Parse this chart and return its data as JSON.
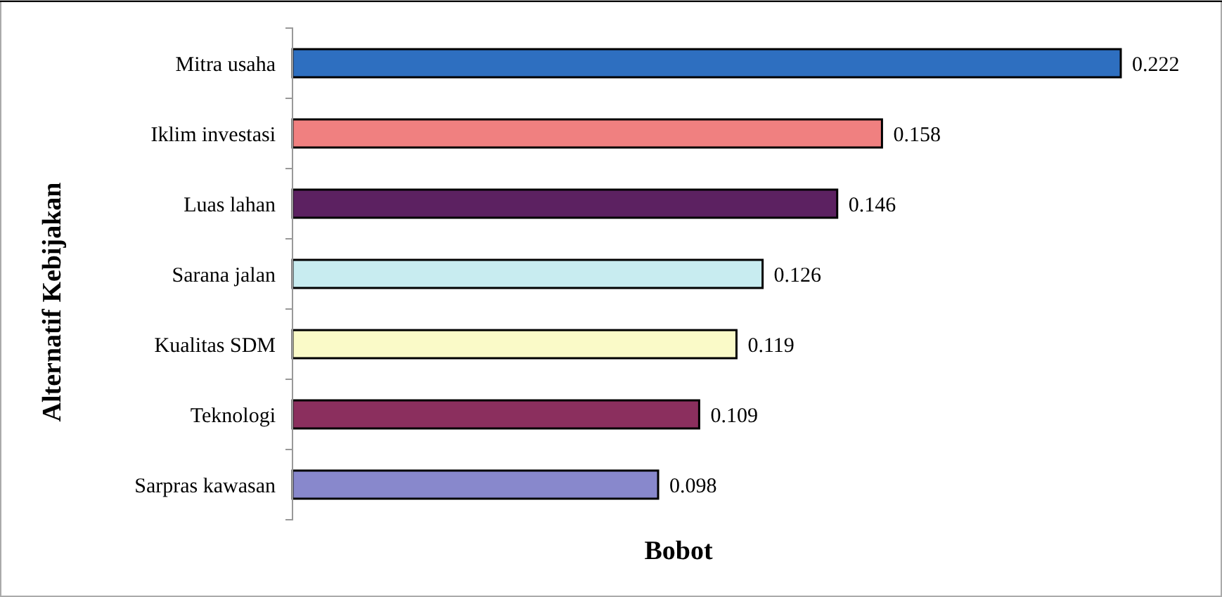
{
  "chart_data": {
    "type": "bar",
    "orientation": "horizontal",
    "xlabel": "Bobot",
    "ylabel": "Alternatif Kebijakan",
    "categories": [
      "Mitra usaha",
      "Iklim investasi",
      "Luas lahan",
      "Sarana jalan",
      "Kualitas SDM",
      "Teknologi",
      "Sarpras kawasan"
    ],
    "values": [
      0.222,
      0.158,
      0.146,
      0.126,
      0.119,
      0.109,
      0.098
    ],
    "colors": [
      "#2e6fc0",
      "#f08080",
      "#5c2161",
      "#c8ecf0",
      "#fafac8",
      "#8b2f5e",
      "#8888cc"
    ],
    "data_labels": true
  }
}
